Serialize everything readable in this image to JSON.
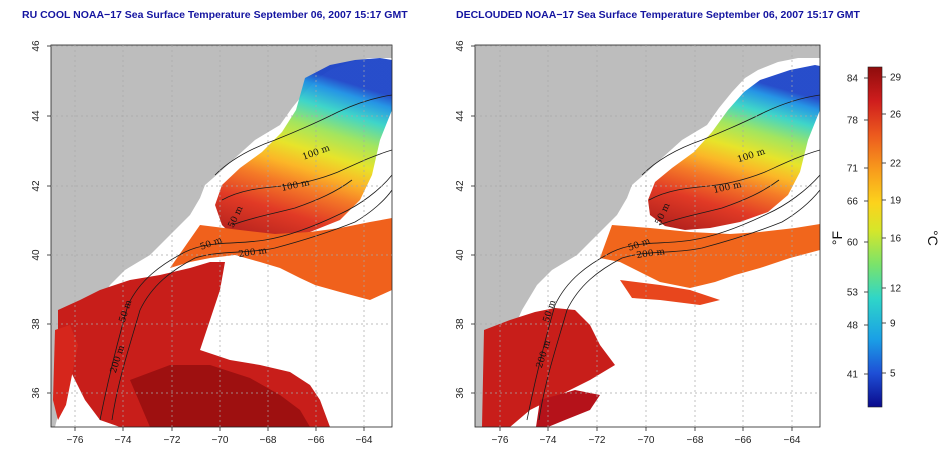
{
  "panels": [
    {
      "title": "RU COOL NOAA−17 Sea Surface Temperature September 06, 2007 15:17 GMT",
      "contour_labels": [
        "100 m",
        "100 m",
        "50 m",
        "50 m",
        "200 m",
        "50 m",
        "200 m"
      ]
    },
    {
      "title": "DECLOUDED NOAA−17 Sea Surface Temperature September 06, 2007 15:17 GMT",
      "contour_labels": [
        "100 m",
        "100 m",
        "50 m",
        "50 m",
        "200 m",
        "50 m",
        "200 m"
      ]
    }
  ],
  "axes": {
    "x_ticks": [
      "−76",
      "−74",
      "−72",
      "−70",
      "−68",
      "−66",
      "−64"
    ],
    "y_ticks": [
      "36",
      "38",
      "40",
      "42",
      "44",
      "46"
    ]
  },
  "colorbar": {
    "fahrenheit_label": "°F",
    "celsius_label": "°C",
    "fahrenheit_ticks": [
      "84",
      "78",
      "71",
      "66",
      "60",
      "53",
      "48",
      "41"
    ],
    "celsius_ticks": [
      "29",
      "26",
      "22",
      "19",
      "16",
      "12",
      "9",
      "5"
    ]
  },
  "colors": {
    "land": "#bdbdbd",
    "grid": "#a8a8a8",
    "title": "#1414a0",
    "scale": [
      "#0a0a8c",
      "#1e4fd6",
      "#1aa0e6",
      "#2fd6c8",
      "#7be36a",
      "#d6e62a",
      "#fcd31c",
      "#f89a1c",
      "#ec5a1e",
      "#cf1d1d",
      "#8e0c0c"
    ]
  }
}
